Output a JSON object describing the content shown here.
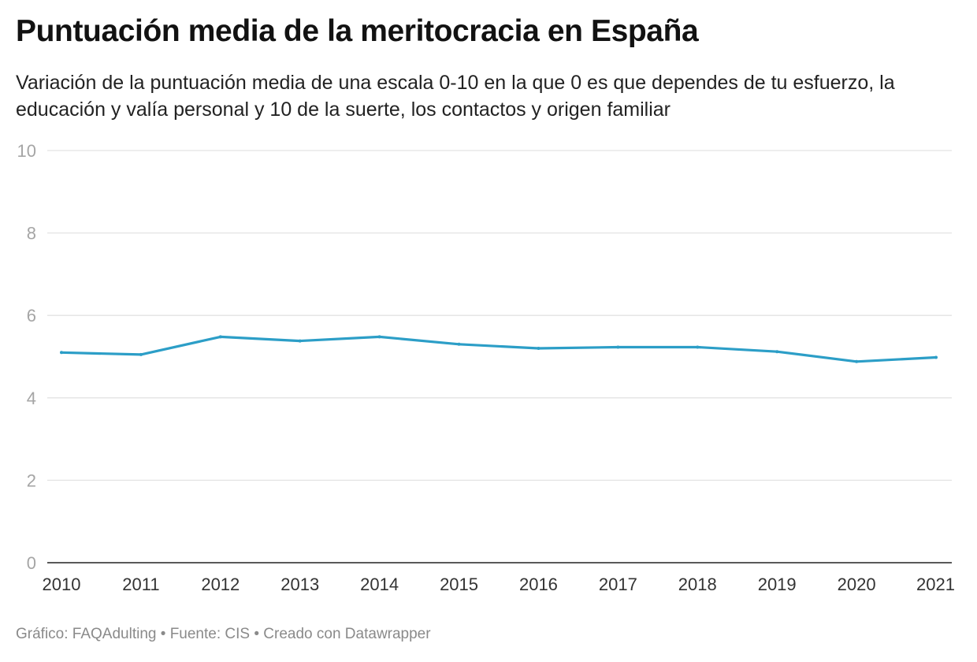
{
  "title": "Puntuación media de la meritocracia en España",
  "subtitle": "Variación de la puntuación media de una escala 0-10 en la que 0 es que dependes de tu esfuerzo, la educación y valía personal y 10 de la suerte, los contactos y origen familiar",
  "footer": {
    "credit": "Gráfico: FAQAdulting",
    "separator": " • ",
    "source": "Fuente: CIS",
    "tool": "Creado con Datawrapper"
  },
  "colors": {
    "line": "#2c9ec7"
  },
  "chart_data": {
    "type": "line",
    "title": "Puntuación media de la meritocracia en España",
    "subtitle": "Variación de la puntuación media de una escala 0-10 en la que 0 es que dependes de tu esfuerzo, la educación y valía personal y 10 de la suerte, los contactos y origen familiar",
    "xlabel": "",
    "ylabel": "",
    "x": [
      "2010",
      "2011",
      "2012",
      "2013",
      "2014",
      "2015",
      "2016",
      "2017",
      "2018",
      "2019",
      "2020",
      "2021"
    ],
    "series": [
      {
        "values": [
          5.1,
          5.05,
          5.48,
          5.38,
          5.48,
          5.3,
          5.2,
          5.23,
          5.23,
          5.12,
          4.88,
          4.98
        ]
      }
    ],
    "ylim": [
      0,
      10
    ],
    "yticks": [
      0,
      2,
      4,
      6,
      8,
      10
    ],
    "grid": true,
    "legend": "none"
  }
}
